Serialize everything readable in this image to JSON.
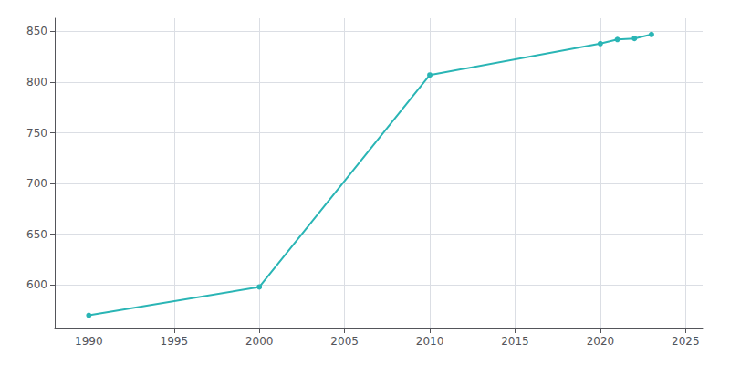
{
  "chart_data": {
    "type": "line",
    "x": [
      1990,
      2000,
      2010,
      2020,
      2021,
      2022,
      2023
    ],
    "values": [
      570,
      598,
      807,
      838,
      842,
      843,
      847
    ],
    "color": "#2ab5b5",
    "marker": "circle",
    "xlim": [
      1988,
      2026
    ],
    "ylim": [
      557,
      863
    ],
    "xticks": [
      1990,
      1995,
      2000,
      2005,
      2010,
      2015,
      2020,
      2025
    ],
    "yticks": [
      600,
      650,
      700,
      750,
      800,
      850
    ],
    "grid": true
  }
}
